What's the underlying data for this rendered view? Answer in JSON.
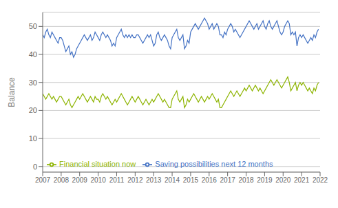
{
  "chart_data": {
    "type": "line",
    "ylabel": "Balance",
    "x": [
      2007,
      2007.0833,
      2007.1667,
      2007.25,
      2007.3333,
      2007.4167,
      2007.5,
      2007.5833,
      2007.6667,
      2007.75,
      2007.8333,
      2007.9167,
      2008,
      2008.0833,
      2008.1667,
      2008.25,
      2008.3333,
      2008.4167,
      2008.5,
      2008.5833,
      2008.6667,
      2008.75,
      2008.8333,
      2008.9167,
      2009,
      2009.0833,
      2009.1667,
      2009.25,
      2009.3333,
      2009.4167,
      2009.5,
      2009.5833,
      2009.6667,
      2009.75,
      2009.8333,
      2009.9167,
      2010,
      2010.0833,
      2010.1667,
      2010.25,
      2010.3333,
      2010.4167,
      2010.5,
      2010.5833,
      2010.6667,
      2010.75,
      2010.8333,
      2010.9167,
      2011,
      2011.0833,
      2011.1667,
      2011.25,
      2011.3333,
      2011.4167,
      2011.5,
      2011.5833,
      2011.6667,
      2011.75,
      2011.8333,
      2011.9167,
      2012,
      2012.0833,
      2012.1667,
      2012.25,
      2012.3333,
      2012.4167,
      2012.5,
      2012.5833,
      2012.6667,
      2012.75,
      2012.8333,
      2012.9167,
      2013,
      2013.0833,
      2013.1667,
      2013.25,
      2013.3333,
      2013.4167,
      2013.5,
      2013.5833,
      2013.6667,
      2013.75,
      2013.8333,
      2013.9167,
      2014,
      2014.0833,
      2014.1667,
      2014.25,
      2014.3333,
      2014.4167,
      2014.5,
      2014.5833,
      2014.6667,
      2014.75,
      2014.8333,
      2014.9167,
      2015,
      2015.0833,
      2015.1667,
      2015.25,
      2015.3333,
      2015.4167,
      2015.5,
      2015.5833,
      2015.6667,
      2015.75,
      2015.8333,
      2015.9167,
      2016,
      2016.0833,
      2016.1667,
      2016.25,
      2016.3333,
      2016.4167,
      2016.5,
      2016.5833,
      2016.6667,
      2016.75,
      2016.8333,
      2016.9167,
      2017,
      2017.0833,
      2017.1667,
      2017.25,
      2017.3333,
      2017.4167,
      2017.5,
      2017.5833,
      2017.6667,
      2017.75,
      2017.8333,
      2017.9167,
      2018,
      2018.0833,
      2018.1667,
      2018.25,
      2018.3333,
      2018.4167,
      2018.5,
      2018.5833,
      2018.6667,
      2018.75,
      2018.8333,
      2018.9167,
      2019,
      2019.0833,
      2019.1667,
      2019.25,
      2019.3333,
      2019.4167,
      2019.5,
      2019.5833,
      2019.6667,
      2019.75,
      2019.8333,
      2019.9167,
      2020,
      2020.0833,
      2020.1667,
      2020.25,
      2020.3333,
      2020.4167,
      2020.5,
      2020.5833,
      2020.6667,
      2020.75,
      2020.8333,
      2020.9167,
      2021,
      2021.0833,
      2021.1667,
      2021.25,
      2021.3333,
      2021.4167,
      2021.5,
      2021.5833,
      2021.6667,
      2021.75,
      2021.8333,
      2021.9167
    ],
    "series": [
      {
        "name": "Saving possibilities next 12 months",
        "color": "#4472c4",
        "values": [
          47,
          46,
          48,
          49,
          47,
          46,
          48,
          47,
          46,
          45,
          44,
          46,
          46,
          45,
          43,
          41,
          42,
          43,
          40,
          41,
          39,
          40,
          42,
          43,
          44,
          45,
          46,
          47,
          46,
          45,
          46,
          47,
          45,
          46,
          48,
          47,
          46,
          45,
          47,
          48,
          47,
          46,
          47,
          46,
          45,
          43,
          44,
          43,
          46,
          47,
          48,
          49,
          47,
          46,
          47,
          46,
          47,
          46,
          47,
          46,
          46,
          47,
          47,
          46,
          45,
          44,
          45,
          46,
          47,
          46,
          47,
          45,
          43,
          44,
          47,
          48,
          46,
          45,
          46,
          47,
          46,
          45,
          43,
          42,
          46,
          47,
          48,
          49,
          46,
          45,
          46,
          47,
          42,
          43,
          45,
          44,
          48,
          49,
          50,
          51,
          50,
          49,
          50,
          51,
          52,
          53,
          52,
          51,
          49,
          50,
          51,
          49,
          50,
          51,
          50,
          47,
          47,
          46,
          48,
          47,
          49,
          50,
          51,
          50,
          48,
          49,
          48,
          47,
          46,
          47,
          48,
          49,
          50,
          51,
          52,
          51,
          50,
          49,
          50,
          51,
          49,
          50,
          51,
          52,
          50,
          49,
          51,
          52,
          50,
          49,
          50,
          51,
          52,
          50,
          48,
          47,
          48,
          50,
          51,
          52,
          51,
          47,
          48,
          47,
          48,
          43,
          46,
          47,
          46,
          47,
          46,
          45,
          44,
          45,
          46,
          45,
          47,
          46,
          48,
          49
        ]
      },
      {
        "name": "Financial situation now",
        "color": "#8db400",
        "values": [
          26,
          25,
          24,
          25,
          26,
          25,
          24,
          25,
          24,
          23,
          24,
          25,
          25,
          24,
          23,
          22,
          23,
          24,
          22,
          21,
          22,
          23,
          24,
          25,
          24,
          25,
          26,
          25,
          24,
          23,
          24,
          25,
          24,
          23,
          25,
          24,
          24,
          23,
          25,
          26,
          25,
          24,
          25,
          24,
          23,
          22,
          23,
          24,
          23,
          24,
          25,
          26,
          25,
          24,
          23,
          22,
          23,
          24,
          25,
          24,
          23,
          24,
          25,
          24,
          23,
          22,
          23,
          24,
          23,
          22,
          23,
          24,
          23,
          24,
          25,
          26,
          25,
          24,
          23,
          24,
          23,
          22,
          21,
          21,
          24,
          25,
          26,
          27,
          24,
          23,
          24,
          25,
          21,
          22,
          24,
          23,
          24,
          25,
          26,
          25,
          24,
          23,
          24,
          25,
          24,
          23,
          24,
          25,
          24,
          25,
          26,
          25,
          24,
          23,
          24,
          21,
          21,
          22,
          23,
          24,
          25,
          26,
          27,
          26,
          25,
          26,
          27,
          26,
          25,
          26,
          27,
          28,
          27,
          28,
          29,
          28,
          27,
          28,
          29,
          28,
          27,
          28,
          27,
          26,
          27,
          28,
          29,
          30,
          31,
          30,
          29,
          30,
          31,
          30,
          29,
          28,
          29,
          30,
          31,
          32,
          30,
          27,
          28,
          29,
          30,
          27,
          29,
          30,
          29,
          30,
          29,
          28,
          27,
          28,
          27,
          26,
          28,
          27,
          29,
          30
        ]
      }
    ],
    "xlim": [
      2007,
      2022
    ],
    "xticks": [
      2007,
      2008,
      2009,
      2010,
      2011,
      2012,
      2013,
      2014,
      2015,
      2016,
      2017,
      2018,
      2019,
      2020,
      2021,
      2022
    ],
    "ylim": [
      -2,
      55
    ],
    "yticks": [
      0,
      10,
      20,
      30,
      40,
      50
    ],
    "grid": "y",
    "legend": "lower left"
  }
}
